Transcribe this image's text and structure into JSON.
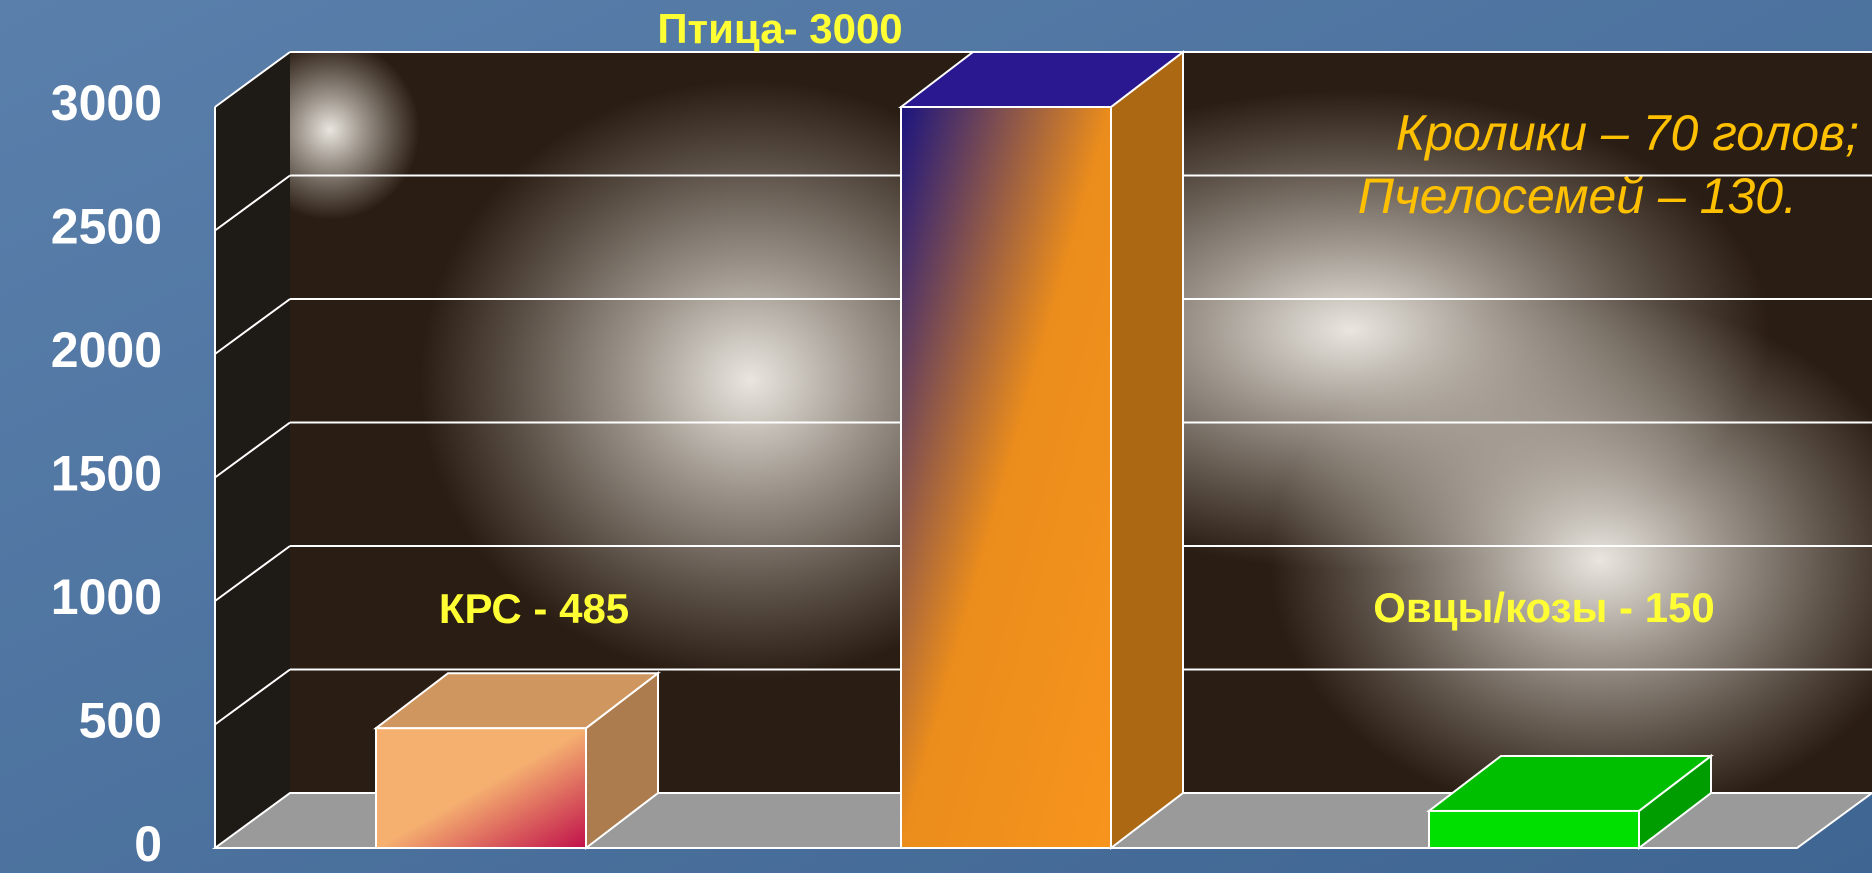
{
  "chart_data": {
    "type": "bar3d",
    "categories": [
      null,
      null,
      null
    ],
    "values": [
      485,
      3000,
      150
    ],
    "value_labels": [
      "КРС - 485",
      "Птица- 3000",
      "Овцы/козы - 150"
    ],
    "colors": [
      "#f5b070",
      "#f7941d",
      "#00e000"
    ],
    "ylim": [
      0,
      3000
    ],
    "yticks": [
      0,
      500,
      1000,
      1500,
      2000,
      2500,
      3000
    ],
    "grid": true,
    "annotations": [
      "Кролики – 70 голов;",
      "Пчелосемей – 130."
    ]
  }
}
